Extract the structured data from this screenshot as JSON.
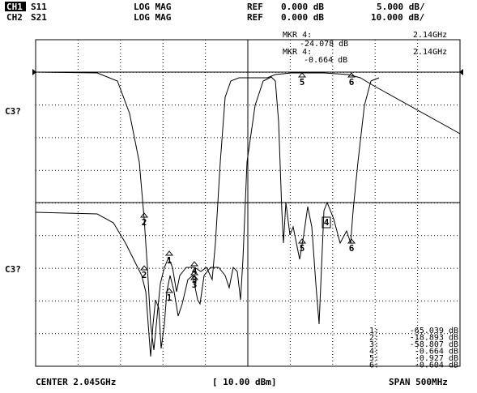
{
  "header": {
    "ch1": {
      "label": "CH1",
      "param": "S11",
      "format": "LOG MAG",
      "ref": "REF",
      "ref_value": "0.000 dB",
      "scale": "5.000 dB/"
    },
    "ch2": {
      "label": "CH2",
      "param": "S21",
      "format": "LOG MAG",
      "ref": "REF",
      "ref_value": "0.000 dB",
      "scale": "10.000 dB/"
    }
  },
  "marker_readout": [
    {
      "label": "MKR 4:",
      "value": "-24.078 dB",
      "freq": "2.14GHz"
    },
    {
      "label": "MKR 4:",
      "value": "-0.664 dB",
      "freq": "2.14GHz"
    }
  ],
  "side_labels": [
    "C3?",
    "C3?"
  ],
  "trace_markers": [
    "1",
    "2",
    "3",
    "4",
    "5",
    "6",
    "1",
    "2",
    "3",
    "4",
    "5",
    "6"
  ],
  "marker_list": [
    {
      "index": "1:",
      "value": "-65.039 dB"
    },
    {
      "index": "2:",
      "value": "-18.893 dB"
    },
    {
      "index": "3:",
      "value": "-58.807 dB"
    },
    {
      "index": "4:",
      "value": "-0.664 dB"
    },
    {
      "index": "5:",
      "value": "-0.927 dB"
    },
    {
      "index": "6:",
      "value": "-0.604 dB"
    }
  ],
  "footer": {
    "center": "CENTER 2.045GHz",
    "power": "[ 10.00 dBm]",
    "span": "SPAN 500MHz"
  }
}
